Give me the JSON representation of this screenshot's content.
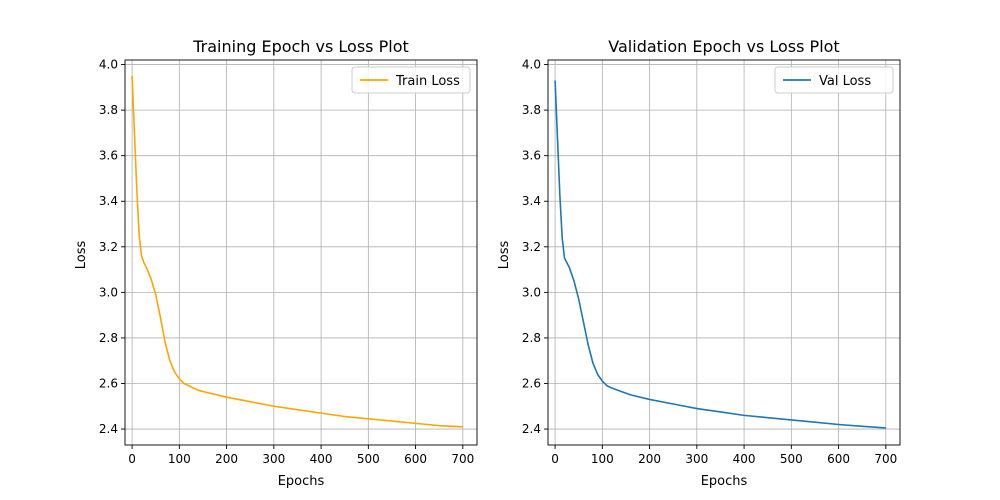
{
  "chart_data": [
    {
      "type": "line",
      "title": "Training Epoch vs Loss Plot",
      "xlabel": "Epochs",
      "ylabel": "Loss",
      "xlim": [
        -15,
        730
      ],
      "ylim": [
        2.33,
        4.02
      ],
      "xticks": [
        0,
        100,
        200,
        300,
        400,
        500,
        600,
        700
      ],
      "yticks": [
        2.4,
        2.6,
        2.8,
        3.0,
        3.2,
        3.4,
        3.6,
        3.8,
        4.0
      ],
      "ytick_labels": [
        "2.4",
        "2.6",
        "2.8",
        "3.0",
        "3.2",
        "3.4",
        "3.6",
        "3.8",
        "4.0"
      ],
      "grid": true,
      "legend_position": "top-right",
      "series": [
        {
          "name": "Train Loss",
          "color": "#ffa500",
          "x": [
            0,
            5,
            10,
            15,
            20,
            25,
            30,
            40,
            50,
            60,
            70,
            80,
            90,
            100,
            110,
            120,
            140,
            160,
            200,
            250,
            300,
            350,
            400,
            450,
            500,
            550,
            600,
            650,
            700
          ],
          "y": [
            3.95,
            3.7,
            3.45,
            3.25,
            3.16,
            3.13,
            3.11,
            3.06,
            2.99,
            2.89,
            2.78,
            2.7,
            2.65,
            2.62,
            2.6,
            2.59,
            2.57,
            2.56,
            2.54,
            2.52,
            2.5,
            2.485,
            2.47,
            2.455,
            2.445,
            2.435,
            2.425,
            2.415,
            2.41
          ]
        }
      ]
    },
    {
      "type": "line",
      "title": "Validation Epoch vs Loss Plot",
      "xlabel": "Epochs",
      "ylabel": "Loss",
      "xlim": [
        -15,
        730
      ],
      "ylim": [
        2.33,
        4.02
      ],
      "xticks": [
        0,
        100,
        200,
        300,
        400,
        500,
        600,
        700
      ],
      "yticks": [
        2.4,
        2.6,
        2.8,
        3.0,
        3.2,
        3.4,
        3.6,
        3.8,
        4.0
      ],
      "ytick_labels": [
        "2.4",
        "2.6",
        "2.8",
        "3.0",
        "3.2",
        "3.4",
        "3.6",
        "3.8",
        "4.0"
      ],
      "grid": true,
      "legend_position": "top-right",
      "series": [
        {
          "name": "Val Loss",
          "color": "#1f77b4",
          "x": [
            0,
            5,
            10,
            15,
            20,
            25,
            30,
            40,
            50,
            60,
            70,
            80,
            90,
            100,
            110,
            120,
            140,
            160,
            200,
            250,
            300,
            350,
            400,
            450,
            500,
            550,
            600,
            650,
            700
          ],
          "y": [
            3.93,
            3.68,
            3.43,
            3.24,
            3.15,
            3.13,
            3.11,
            3.05,
            2.97,
            2.87,
            2.77,
            2.69,
            2.64,
            2.61,
            2.59,
            2.58,
            2.565,
            2.55,
            2.53,
            2.51,
            2.49,
            2.475,
            2.46,
            2.45,
            2.44,
            2.43,
            2.42,
            2.412,
            2.405
          ]
        }
      ]
    }
  ]
}
